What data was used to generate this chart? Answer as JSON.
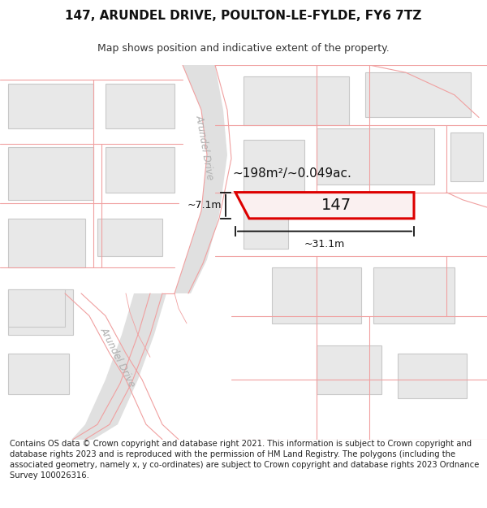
{
  "title_line1": "147, ARUNDEL DRIVE, POULTON-LE-FYLDE, FY6 7TZ",
  "title_line2": "Map shows position and indicative extent of the property.",
  "footer_text": "Contains OS data © Crown copyright and database right 2021. This information is subject to Crown copyright and database rights 2023 and is reproduced with the permission of HM Land Registry. The polygons (including the associated geometry, namely x, y co-ordinates) are subject to Crown copyright and database rights 2023 Ordnance Survey 100026316.",
  "area_label": "~198m²/~0.049ac.",
  "width_label": "~31.1m",
  "height_label": "~7.1m",
  "property_number": "147",
  "road_label_upper": "Arundel Drive",
  "road_label_lower": "Arundel Drive",
  "bg_color": "#ffffff",
  "map_bg": "#ffffff",
  "road_fill": "#e8e8e8",
  "road_line_color": "#f0a0a0",
  "building_fill": "#e8e8e8",
  "building_edge": "#c8c8c8",
  "property_fill": "#ffffff",
  "property_edge": "#dd0000",
  "dim_color": "#111111",
  "text_color": "#111111",
  "road_text_color": "#b0b0b0",
  "title_fontsize": 11,
  "subtitle_fontsize": 9,
  "footer_fontsize": 7.2,
  "label_fontsize": 11,
  "dim_fontsize": 9,
  "prop_num_fontsize": 14
}
